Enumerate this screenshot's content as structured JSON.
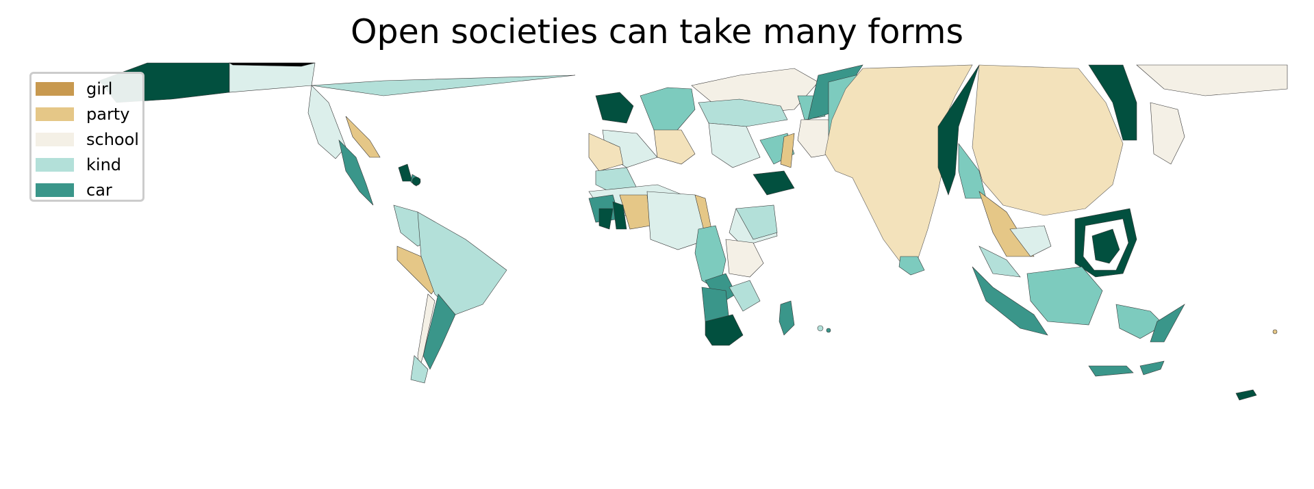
{
  "title": "Open societies can take many forms",
  "legend": {
    "placement": "upper-left",
    "items": [
      {
        "label": "girl",
        "color": "#c8994f"
      },
      {
        "label": "party",
        "color": "#e5c787"
      },
      {
        "label": "school",
        "color": "#f4f0e6"
      },
      {
        "label": "kind",
        "color": "#b3e0d9"
      },
      {
        "label": "car",
        "color": "#3a968a"
      }
    ]
  },
  "extra_colors": {
    "pale_teal": "#dcefeb",
    "mid_teal": "#7dcbbe",
    "dark_teal": "#02503f",
    "party_light": "#f3e2bb"
  }
}
